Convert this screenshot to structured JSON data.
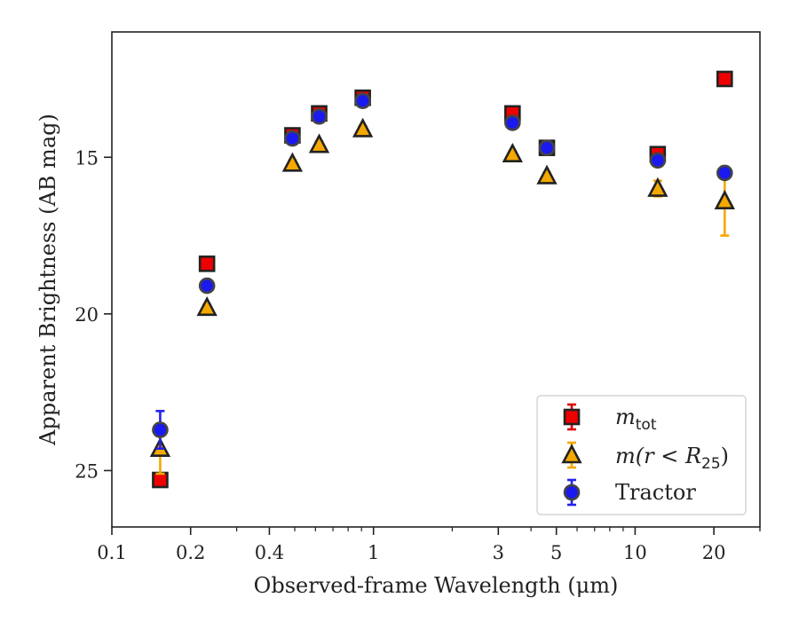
{
  "chart_data": {
    "type": "scatter",
    "xlabel": "Observed-frame Wavelength (μm)",
    "ylabel": "Apparent Brightness (AB mag)",
    "x_scale": "log",
    "xlim": [
      0.1,
      30
    ],
    "ylim": [
      26.8,
      11.0
    ],
    "y_inverted": true,
    "x_ticks": [
      0.1,
      0.2,
      0.4,
      1,
      3,
      5,
      10,
      20
    ],
    "x_tick_labels": [
      "0.1",
      "0.2",
      "0.4",
      "1",
      "3",
      "5",
      "10",
      "20"
    ],
    "y_ticks": [
      15,
      20,
      25
    ],
    "y_tick_labels": [
      "15",
      "20",
      "25"
    ],
    "grid": false,
    "legend_position": "lower-right",
    "series": [
      {
        "key": "mtot",
        "legend_main": "m",
        "legend_sub": "tot",
        "marker": "square",
        "fill": "#ee0000",
        "edge": "#222222",
        "errcolor": "#dd0000",
        "points": [
          {
            "x": 0.153,
            "y": 25.3,
            "err": 0.15
          },
          {
            "x": 0.231,
            "y": 18.4,
            "err": 0.1
          },
          {
            "x": 0.49,
            "y": 14.3,
            "err": 0.15
          },
          {
            "x": 0.62,
            "y": 13.6,
            "err": 0.15
          },
          {
            "x": 0.91,
            "y": 13.1,
            "err": 0.15
          },
          {
            "x": 3.4,
            "y": 13.6,
            "err": 0.1
          },
          {
            "x": 4.6,
            "y": 14.7,
            "err": 0.1
          },
          {
            "x": 12.2,
            "y": 14.9,
            "err": 0.1
          },
          {
            "x": 22.0,
            "y": 12.5,
            "err": 0.1
          }
        ]
      },
      {
        "key": "mr25",
        "legend_main": "m(r < R",
        "legend_sub": "25",
        "legend_tail": ")",
        "marker": "triangle",
        "fill": "#f5a800",
        "edge": "#222222",
        "errcolor": "#f5a800",
        "points": [
          {
            "x": 0.153,
            "y": 24.3,
            "err": 0.8
          },
          {
            "x": 0.231,
            "y": 19.8,
            "err": 0.1
          },
          {
            "x": 0.49,
            "y": 15.2,
            "err": 0.1
          },
          {
            "x": 0.62,
            "y": 14.6,
            "err": 0.1
          },
          {
            "x": 0.91,
            "y": 14.1,
            "err": 0.1
          },
          {
            "x": 3.4,
            "y": 14.9,
            "err": 0.1
          },
          {
            "x": 4.6,
            "y": 15.6,
            "err": 0.1
          },
          {
            "x": 12.2,
            "y": 16.0,
            "err": 0.25
          },
          {
            "x": 22.0,
            "y": 16.4,
            "err": 1.1
          }
        ]
      },
      {
        "key": "tractor",
        "legend_main": "Tractor",
        "marker": "circle",
        "fill": "#1a1aee",
        "edge": "#444444",
        "errcolor": "#2222ee",
        "points": [
          {
            "x": 0.153,
            "y": 23.7,
            "err": 0.6
          },
          {
            "x": 0.231,
            "y": 19.1,
            "err": 0.05
          },
          {
            "x": 0.49,
            "y": 14.4,
            "err": 0.05
          },
          {
            "x": 0.62,
            "y": 13.7,
            "err": 0.05
          },
          {
            "x": 0.91,
            "y": 13.2,
            "err": 0.05
          },
          {
            "x": 3.4,
            "y": 13.9,
            "err": 0.05
          },
          {
            "x": 4.6,
            "y": 14.7,
            "err": 0.05
          },
          {
            "x": 12.2,
            "y": 15.1,
            "err": 0.05
          },
          {
            "x": 22.0,
            "y": 15.5,
            "err": 0.15
          }
        ]
      }
    ]
  }
}
